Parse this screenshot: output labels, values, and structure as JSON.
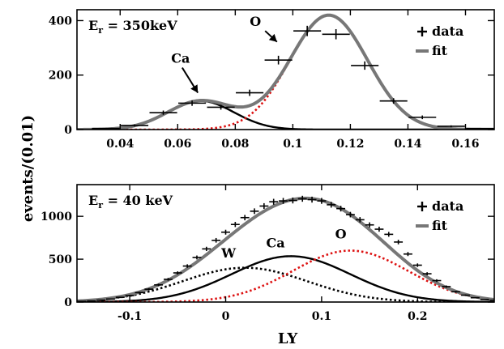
{
  "ylabel": "events/(0.01)",
  "xlabel": "LY",
  "chart_data": [
    {
      "type": "line",
      "panel": "top",
      "energy_label": {
        "prefix": "E",
        "sub": "r",
        "value": " = 350keV"
      },
      "xlim": [
        0.025,
        0.17
      ],
      "ylim": [
        0,
        440
      ],
      "xticks": [
        0.04,
        0.06,
        0.08,
        0.1,
        0.12,
        0.14,
        0.16
      ],
      "xtick_labels": [
        "0.04",
        "0.06",
        "0.08",
        "0.1",
        "0.12",
        "0.14",
        "0.16"
      ],
      "yticks": [
        0,
        200,
        400
      ],
      "ytick_labels": [
        "0",
        "200",
        "400"
      ],
      "legend": {
        "placement": "top-right",
        "data_label": "data",
        "fit_label": "fit"
      },
      "data": {
        "x": [
          0.035,
          0.045,
          0.055,
          0.065,
          0.075,
          0.085,
          0.095,
          0.105,
          0.115,
          0.125,
          0.135,
          0.145,
          0.155,
          0.165
        ],
        "y": [
          4,
          15,
          62,
          97,
          82,
          135,
          255,
          362,
          350,
          235,
          105,
          45,
          12,
          4
        ]
      },
      "components": [
        {
          "name": "Ca",
          "amp": 105,
          "mu": 0.068,
          "sigma": 0.0115,
          "color": "#000000",
          "dash": "solid"
        },
        {
          "name": "O",
          "amp": 420,
          "mu": 0.1125,
          "sigma": 0.0135,
          "color": "#dd1111",
          "dash": "dotted"
        }
      ],
      "annotations": [
        {
          "text": "Ca",
          "x": 0.061,
          "y": 245,
          "arrow_to": [
            0.067,
            135
          ]
        },
        {
          "text": "O",
          "x": 0.087,
          "y": 380,
          "arrow_to": [
            0.0945,
            322
          ]
        }
      ]
    },
    {
      "type": "line",
      "panel": "bottom",
      "energy_label": {
        "prefix": "E",
        "sub": "r",
        "value": " = 40 keV"
      },
      "xlim": [
        -0.155,
        0.28
      ],
      "ylim": [
        0,
        1370
      ],
      "xticks": [
        -0.1,
        0,
        0.1,
        0.2
      ],
      "xtick_labels": [
        "-0.1",
        "0",
        "0.1",
        "0.2"
      ],
      "yticks": [
        0,
        500,
        1000
      ],
      "ytick_labels": [
        "0",
        "500",
        "1000"
      ],
      "legend": {
        "placement": "top-right",
        "data_label": "data",
        "fit_label": "fit"
      },
      "data": {
        "x": [
          -0.15,
          -0.14,
          -0.13,
          -0.12,
          -0.11,
          -0.1,
          -0.09,
          -0.08,
          -0.07,
          -0.06,
          -0.05,
          -0.04,
          -0.03,
          -0.02,
          -0.01,
          0.0,
          0.01,
          0.02,
          0.03,
          0.04,
          0.05,
          0.06,
          0.07,
          0.08,
          0.09,
          0.1,
          0.11,
          0.12,
          0.13,
          0.14,
          0.15,
          0.16,
          0.17,
          0.18,
          0.19,
          0.2,
          0.21,
          0.22,
          0.23,
          0.24,
          0.25,
          0.26,
          0.27,
          0.28
        ],
        "y": [
          8,
          12,
          22,
          35,
          55,
          75,
          110,
          150,
          200,
          265,
          340,
          420,
          520,
          620,
          720,
          815,
          905,
          985,
          1060,
          1120,
          1170,
          1180,
          1185,
          1205,
          1195,
          1180,
          1135,
          1090,
          1020,
          960,
          900,
          850,
          790,
          700,
          560,
          430,
          330,
          250,
          180,
          120,
          80,
          50,
          30,
          20
        ]
      },
      "components": [
        {
          "name": "W",
          "amp": 400,
          "mu": 0.02,
          "sigma": 0.065,
          "color": "#000000",
          "dash": "dotted"
        },
        {
          "name": "Ca",
          "amp": 535,
          "mu": 0.068,
          "sigma": 0.062,
          "color": "#000000",
          "dash": "solid"
        },
        {
          "name": "O",
          "amp": 600,
          "mu": 0.13,
          "sigma": 0.06,
          "color": "#dd1111",
          "dash": "dotted"
        }
      ],
      "annotations": [
        {
          "text": "W",
          "x": 0.003,
          "y": 520
        },
        {
          "text": "Ca",
          "x": 0.052,
          "y": 640
        },
        {
          "text": "O",
          "x": 0.12,
          "y": 740
        }
      ]
    }
  ]
}
